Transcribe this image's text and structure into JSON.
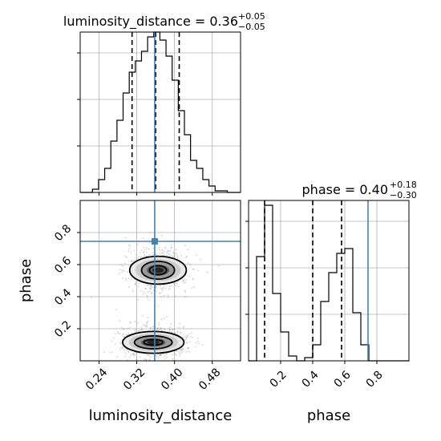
{
  "chart_data": {
    "type": "corner",
    "truth": {
      "luminosity_distance": 0.358,
      "phase": 0.745,
      "color": "#4682b4"
    },
    "grid": true,
    "panels": [
      {
        "id": "hist-luminosity-distance",
        "kind": "histogram",
        "param": "luminosity_distance",
        "title": {
          "main": "luminosity_distance = 0.36",
          "upper": "+0.05",
          "lower": "−0.05"
        },
        "xlim": [
          0.2,
          0.54
        ],
        "ylim": [
          0,
          1
        ],
        "bin_edges": [
          0.2,
          0.213,
          0.226,
          0.239,
          0.252,
          0.265,
          0.278,
          0.291,
          0.304,
          0.317,
          0.33,
          0.343,
          0.356,
          0.369,
          0.382,
          0.395,
          0.408,
          0.421,
          0.434,
          0.447,
          0.46,
          0.473,
          0.486,
          0.499,
          0.512,
          0.525,
          0.54
        ],
        "counts": [
          0.0,
          0.0,
          0.02,
          0.08,
          0.15,
          0.32,
          0.45,
          0.62,
          0.75,
          0.82,
          0.88,
          0.97,
          1.0,
          0.95,
          0.85,
          0.7,
          0.51,
          0.36,
          0.2,
          0.15,
          0.08,
          0.04,
          0.01,
          0.01,
          0.0,
          0.0
        ],
        "quantiles": [
          0.31,
          0.36,
          0.41
        ],
        "yticks": [
          0.29,
          0.58,
          0.87
        ],
        "grid_x": [
          0.24,
          0.32,
          0.4,
          0.48
        ],
        "grid_y": [
          0.29,
          0.58,
          0.87
        ]
      },
      {
        "id": "hist-phase",
        "kind": "histogram",
        "param": "phase",
        "title": {
          "main": "phase = 0.40",
          "upper": "+0.18",
          "lower": "−0.30"
        },
        "xlim": [
          0.0,
          1.0
        ],
        "ylim": [
          0,
          1
        ],
        "bin_edges": [
          0.0,
          0.05,
          0.1,
          0.15,
          0.2,
          0.25,
          0.3,
          0.35,
          0.4,
          0.45,
          0.5,
          0.55,
          0.6,
          0.65,
          0.7,
          0.75,
          0.8,
          0.85,
          0.9,
          0.95,
          1.0
        ],
        "counts": [
          0.0,
          0.65,
          0.97,
          0.42,
          0.18,
          0.03,
          0.0,
          0.02,
          0.1,
          0.37,
          0.55,
          0.67,
          0.7,
          0.3,
          0.1,
          0.0,
          0.0,
          0.0,
          0.0,
          0.0
        ],
        "quantiles": [
          0.1,
          0.4,
          0.58
        ],
        "yticks": [
          0.29,
          0.58,
          0.87
        ],
        "grid_x": [
          0.2,
          0.4,
          0.6,
          0.8
        ],
        "grid_y": [
          0.29,
          0.58,
          0.87
        ],
        "xticks": [
          0.2,
          0.4,
          0.6,
          0.8
        ],
        "xtick_labels": [
          "0.2",
          "0.4",
          "0.6",
          "0.8"
        ],
        "xlabel": "phase"
      },
      {
        "id": "scatter-2d",
        "kind": "density2d",
        "xparam": "luminosity_distance",
        "yparam": "phase",
        "xlim": [
          0.2,
          0.54
        ],
        "ylim": [
          0.0,
          1.0
        ],
        "xticks": [
          0.24,
          0.32,
          0.4,
          0.48
        ],
        "xtick_labels": [
          "0.24",
          "0.32",
          "0.40",
          "0.48"
        ],
        "yticks": [
          0.2,
          0.4,
          0.6,
          0.8
        ],
        "ytick_labels": [
          "0.2",
          "0.4",
          "0.6",
          "0.8"
        ],
        "xlabel": "luminosity_distance",
        "ylabel": "phase",
        "clusters": [
          {
            "cx": 0.365,
            "cy": 0.565,
            "rx": [
              0.06,
              0.035,
              0.018
            ],
            "ry": [
              0.14,
              0.09,
              0.045
            ]
          },
          {
            "cx": 0.355,
            "cy": 0.115,
            "rx": [
              0.065,
              0.04,
              0.02
            ],
            "ry": [
              0.11,
              0.065,
              0.028
            ]
          }
        ],
        "density_levels": [
          "#e8e8e8",
          "#c8c8c8",
          "#909090",
          "#555555",
          "#1a1a1a"
        ]
      }
    ]
  }
}
